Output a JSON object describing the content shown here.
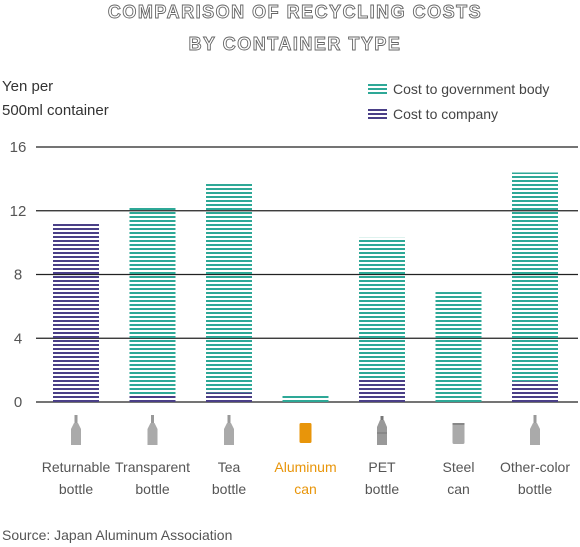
{
  "chart_data": {
    "type": "bar",
    "stacked": true,
    "title_lines": [
      "COMPARISON OF RECYCLING COSTS",
      "BY CONTAINER TYPE"
    ],
    "ylabel_lines": [
      "Yen per",
      "500ml container"
    ],
    "ylim": [
      0,
      16
    ],
    "yticks": [
      0,
      4,
      8,
      12,
      16
    ],
    "grid": true,
    "legend_position": "top-right",
    "categories": [
      {
        "lines": [
          "Returnable",
          "bottle"
        ],
        "highlight": false
      },
      {
        "lines": [
          "Transparent",
          "bottle"
        ],
        "highlight": false
      },
      {
        "lines": [
          "Tea",
          "bottle"
        ],
        "highlight": false
      },
      {
        "lines": [
          "Aluminum",
          "can"
        ],
        "highlight": true
      },
      {
        "lines": [
          "PET",
          "bottle"
        ],
        "highlight": false
      },
      {
        "lines": [
          "Steel",
          "can"
        ],
        "highlight": false
      },
      {
        "lines": [
          "Other-color",
          "bottle"
        ],
        "highlight": false
      }
    ],
    "series": [
      {
        "name": "Cost to company",
        "color": "#4a3f87",
        "values": [
          11.2,
          0.5,
          0.6,
          0.0,
          1.4,
          0.0,
          1.3
        ]
      },
      {
        "name": "Cost to government body",
        "color": "#2ea897",
        "values": [
          0.0,
          11.8,
          13.1,
          0.5,
          8.9,
          6.9,
          13.1
        ]
      }
    ],
    "icon_names": [
      "glass-bottle-icon",
      "glass-bottle-icon",
      "glass-bottle-icon",
      "aluminum-can-icon",
      "pet-bottle-icon",
      "steel-can-icon",
      "glass-bottle-icon"
    ],
    "accent_color": "#e8950a",
    "source": "Source: Japan Aluminum Association"
  }
}
